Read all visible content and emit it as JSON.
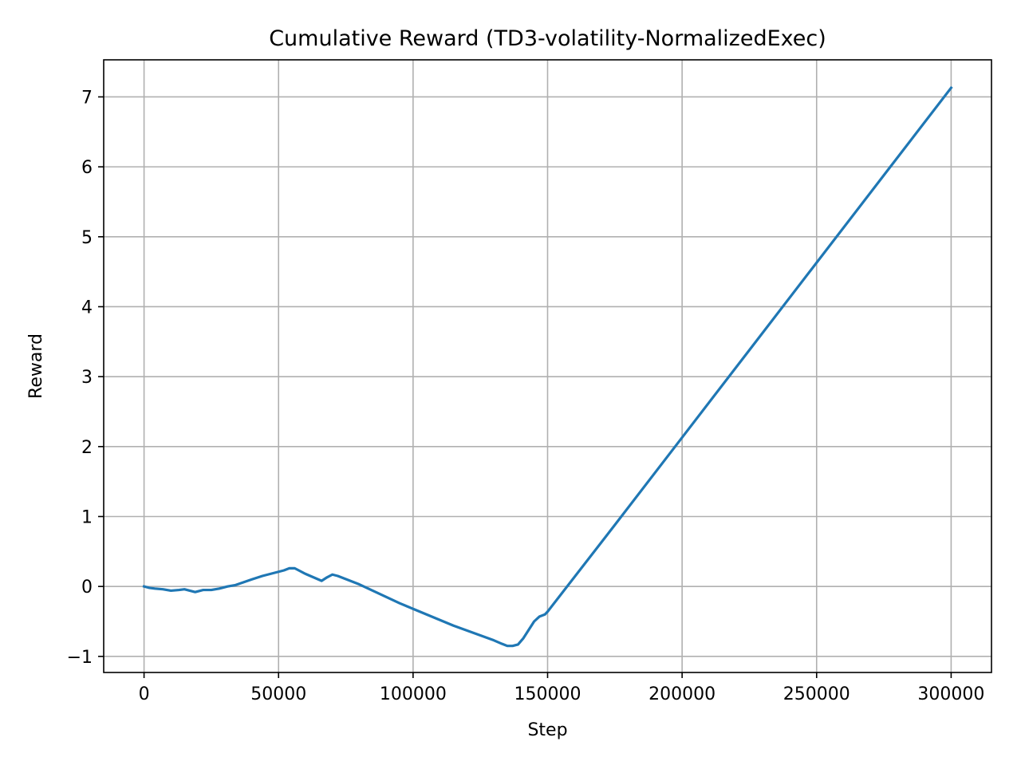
{
  "chart_data": {
    "type": "line",
    "title": "Cumulative Reward (TD3-volatility-NormalizedExec)",
    "xlabel": "Step",
    "ylabel": "Reward",
    "xlim": [
      -15000,
      315000
    ],
    "ylim": [
      -1.23,
      7.53
    ],
    "grid": true,
    "xticks": [
      0,
      50000,
      100000,
      150000,
      200000,
      250000,
      300000
    ],
    "xtick_labels": [
      "0",
      "50000",
      "100000",
      "150000",
      "200000",
      "250000",
      "300000"
    ],
    "yticks": [
      -1,
      0,
      1,
      2,
      3,
      4,
      5,
      6,
      7
    ],
    "ytick_labels": [
      "−1",
      "0",
      "1",
      "2",
      "3",
      "4",
      "5",
      "6",
      "7"
    ],
    "series": [
      {
        "color": "#1f77b4",
        "x": [
          0,
          2000,
          4000,
          7000,
          10000,
          13000,
          15000,
          17000,
          19000,
          20000,
          22000,
          25000,
          28000,
          31000,
          34000,
          37000,
          40000,
          44000,
          48000,
          52000,
          54000,
          56000,
          58000,
          60000,
          63000,
          66000,
          68000,
          70000,
          72000,
          76000,
          80000,
          85000,
          90000,
          95000,
          100000,
          105000,
          110000,
          115000,
          120000,
          125000,
          130000,
          133000,
          135000,
          137000,
          139000,
          141000,
          143000,
          145000,
          147000,
          149000,
          150000,
          175000,
          200000,
          225000,
          250000,
          275000,
          300000
        ],
        "y": [
          0.0,
          -0.02,
          -0.03,
          -0.04,
          -0.06,
          -0.05,
          -0.04,
          -0.06,
          -0.08,
          -0.07,
          -0.05,
          -0.05,
          -0.03,
          0.0,
          0.02,
          0.06,
          0.1,
          0.15,
          0.19,
          0.23,
          0.26,
          0.26,
          0.22,
          0.18,
          0.13,
          0.08,
          0.13,
          0.17,
          0.15,
          0.09,
          0.03,
          -0.06,
          -0.15,
          -0.24,
          -0.32,
          -0.4,
          -0.48,
          -0.56,
          -0.63,
          -0.7,
          -0.77,
          -0.82,
          -0.85,
          -0.85,
          -0.83,
          -0.74,
          -0.62,
          -0.5,
          -0.43,
          -0.4,
          -0.36,
          0.88,
          2.13,
          3.38,
          4.63,
          5.88,
          7.13
        ]
      }
    ]
  }
}
